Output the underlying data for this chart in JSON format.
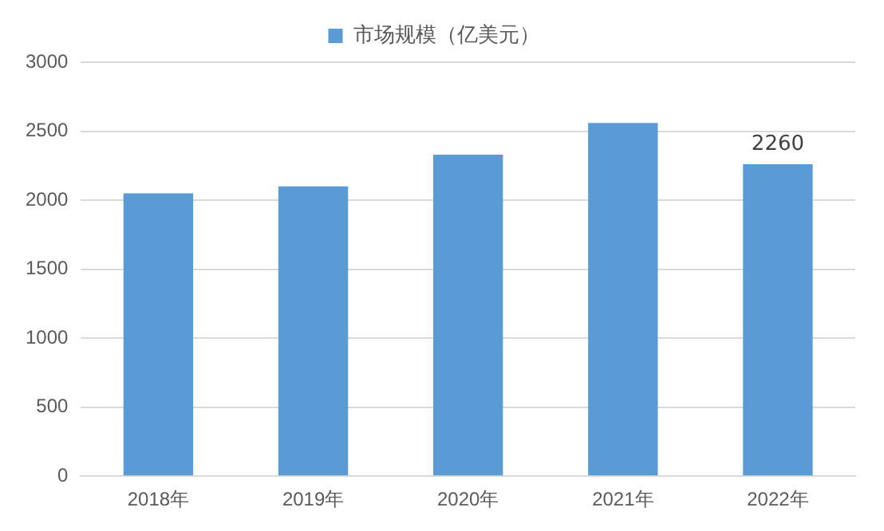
{
  "chart_data": {
    "type": "bar",
    "categories": [
      "2018年",
      "2019年",
      "2020年",
      "2021年",
      "2022年"
    ],
    "series": [
      {
        "name": "市场规模（亿美元）",
        "color": "#5b9bd5",
        "values": [
          2050,
          2100,
          2330,
          2560,
          2260
        ],
        "value_labels": [
          null,
          null,
          null,
          null,
          "2260"
        ]
      }
    ],
    "ylim": [
      0,
      3000
    ],
    "yticks": [
      0,
      500,
      1000,
      1500,
      2000,
      2500,
      3000
    ],
    "grid": "y",
    "legend": "top"
  }
}
